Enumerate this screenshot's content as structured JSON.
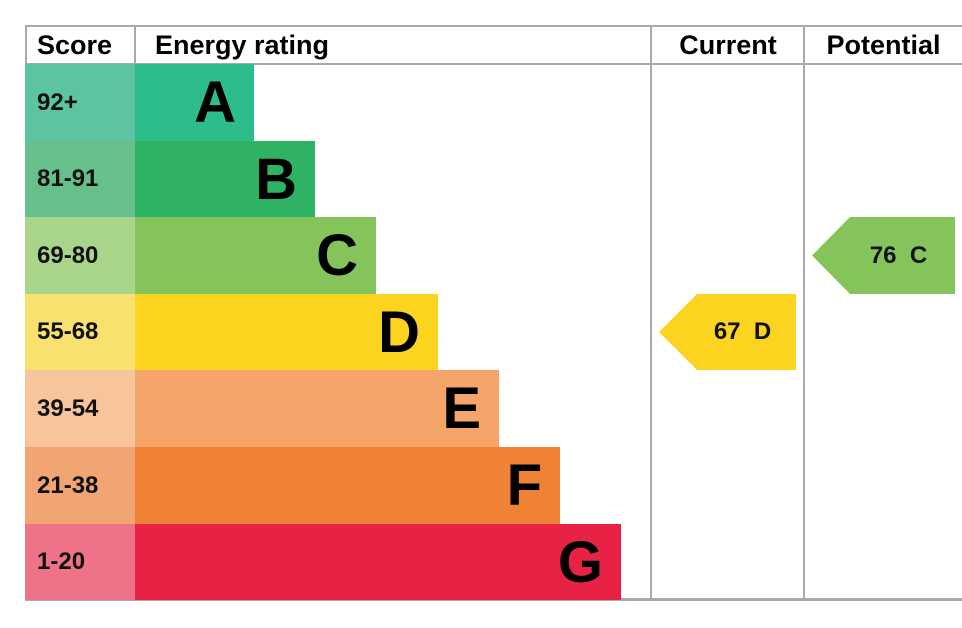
{
  "chart_data": {
    "type": "epc-rating",
    "headers": {
      "score": "Score",
      "energy_rating": "Energy rating",
      "current": "Current",
      "potential": "Potential"
    },
    "bands": [
      {
        "letter": "A",
        "score_range": "92+",
        "color": "#2dbd8a",
        "score_color": "#5cc4a2"
      },
      {
        "letter": "B",
        "score_range": "81-91",
        "color": "#2db363",
        "score_color": "#66c08b"
      },
      {
        "letter": "C",
        "score_range": "69-80",
        "color": "#84c45a",
        "score_color": "#a8d58a"
      },
      {
        "letter": "D",
        "score_range": "55-68",
        "color": "#fcd31f",
        "score_color": "#f8e16f"
      },
      {
        "letter": "E",
        "score_range": "39-54",
        "color": "#f5a56a",
        "score_color": "#f7c49c"
      },
      {
        "letter": "F",
        "score_range": "21-38",
        "color": "#ef8234",
        "score_color": "#f1a572"
      },
      {
        "letter": "G",
        "score_range": "1-20",
        "color": "#e82245",
        "score_color": "#ee7388"
      }
    ],
    "current": {
      "value": 67,
      "band": "D",
      "label": "67  D",
      "color": "#fcd31f"
    },
    "potential": {
      "value": 76,
      "band": "C",
      "label": "76  C",
      "color": "#84c45a"
    }
  }
}
